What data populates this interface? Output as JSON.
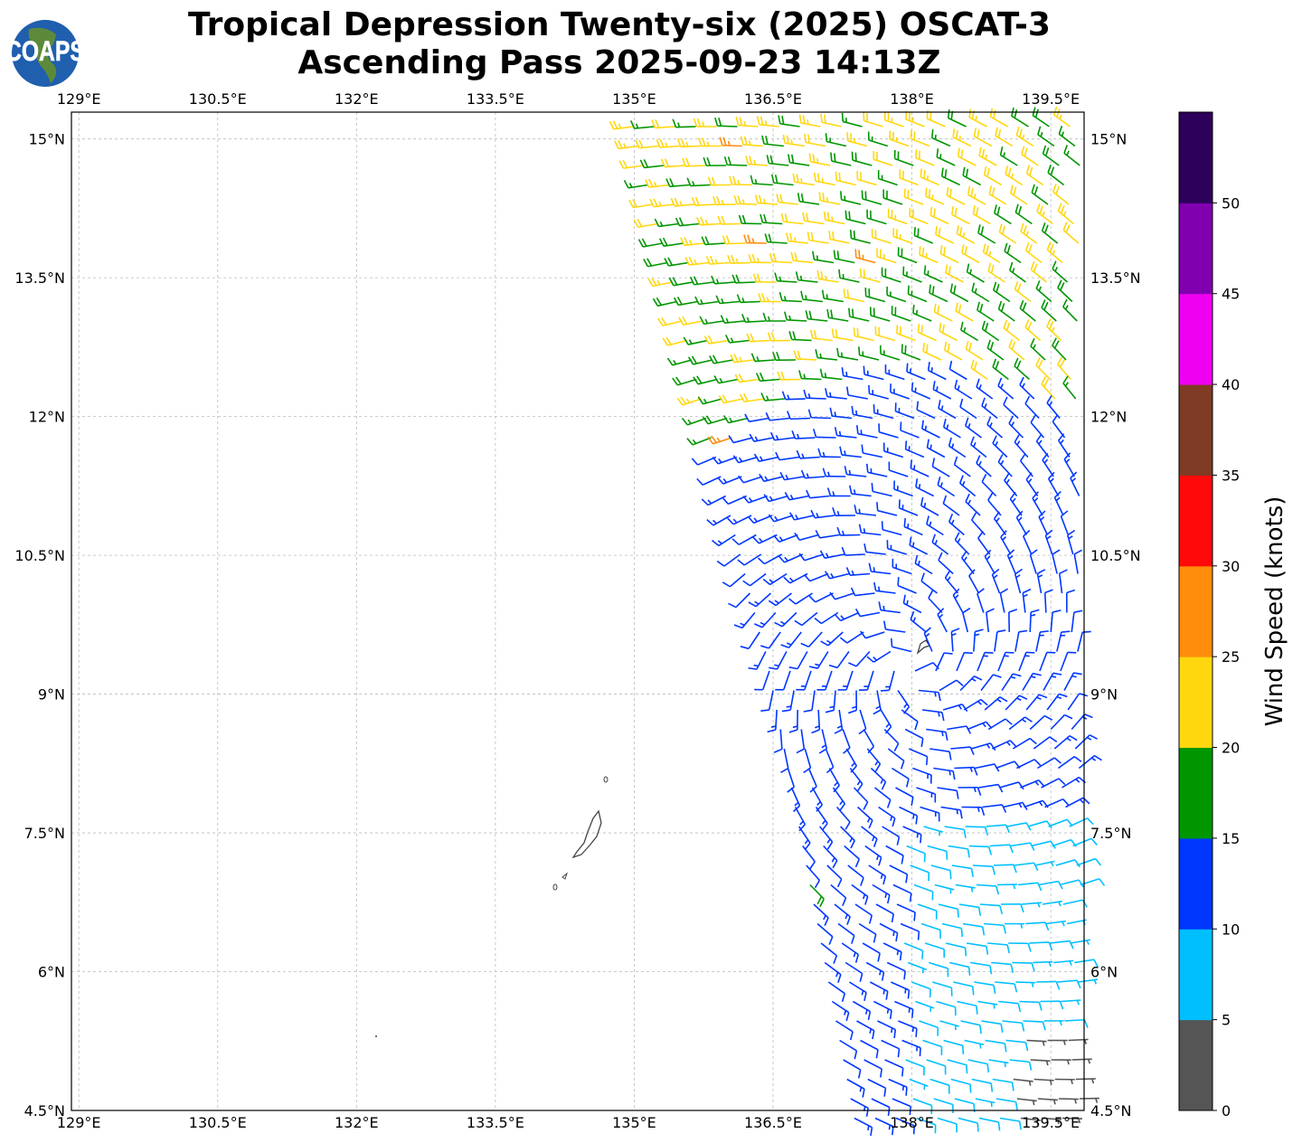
{
  "title": {
    "line1": "Tropical Depression Twenty-six (2025) OSCAT-3",
    "line2": "Ascending Pass 2025-09-23 14:13Z"
  },
  "logo": {
    "text": "COAPS"
  },
  "map": {
    "lon_range": [
      128.92,
      139.86
    ],
    "lat_range": [
      4.5,
      15.29
    ],
    "lon_ticks": [
      {
        "v": 129,
        "label": "129°E"
      },
      {
        "v": 130.5,
        "label": "130.5°E"
      },
      {
        "v": 132,
        "label": "132°E"
      },
      {
        "v": 133.5,
        "label": "133.5°E"
      },
      {
        "v": 135,
        "label": "135°E"
      },
      {
        "v": 136.5,
        "label": "136.5°E"
      },
      {
        "v": 138,
        "label": "138°E"
      },
      {
        "v": 139.5,
        "label": "139.5°E"
      }
    ],
    "lat_ticks": [
      {
        "v": 15,
        "label": "15°N"
      },
      {
        "v": 13.5,
        "label": "13.5°N"
      },
      {
        "v": 12,
        "label": "12°N"
      },
      {
        "v": 10.5,
        "label": "10.5°N"
      },
      {
        "v": 9,
        "label": "9°N"
      },
      {
        "v": 7.5,
        "label": "7.5°N"
      },
      {
        "v": 6,
        "label": "6°N"
      },
      {
        "v": 4.5,
        "label": "4.5°N"
      }
    ],
    "gridlines": true
  },
  "colorbar": {
    "label": "Wind Speed (knots)",
    "ticks": [
      "0",
      "5",
      "10",
      "15",
      "20",
      "25",
      "30",
      "35",
      "40",
      "45",
      "50"
    ],
    "max": 55,
    "colors": [
      "#555555",
      "#00bfff",
      "#0037ff",
      "#009600",
      "#ffd70f",
      "#ff8c0a",
      "#ff0a0a",
      "#7f3b24",
      "#f000f0",
      "#8000b0",
      "#2d005a"
    ]
  }
}
